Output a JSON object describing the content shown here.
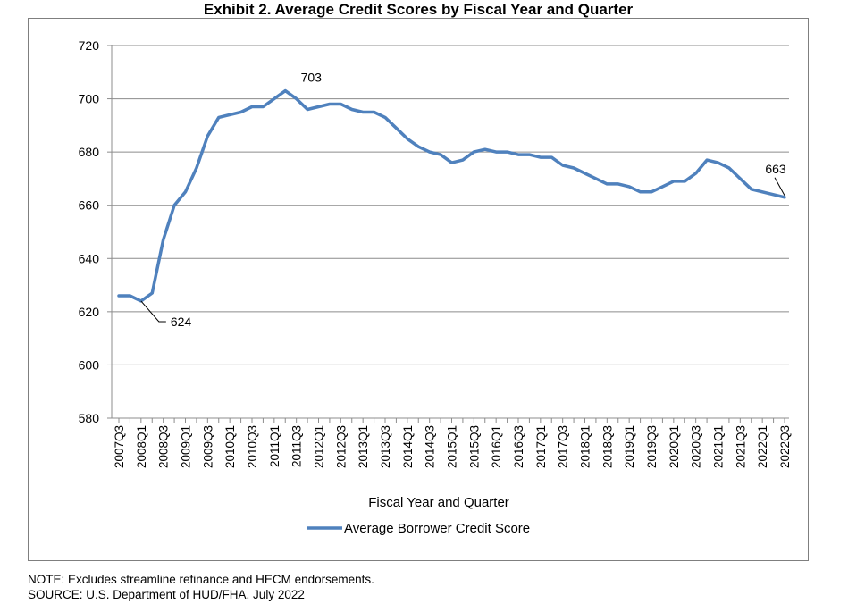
{
  "chart_data": {
    "type": "line",
    "title": "Exhibit 2. Average Credit Scores by Fiscal Year and Quarter",
    "xlabel": "Fiscal Year and Quarter",
    "ylabel": "",
    "ylim": [
      580,
      720
    ],
    "yticks": [
      580,
      600,
      620,
      640,
      660,
      680,
      700,
      720
    ],
    "grid": true,
    "legend_position": "bottom",
    "x": [
      "2007Q3",
      "2007Q4",
      "2008Q1",
      "2008Q2",
      "2008Q3",
      "2008Q4",
      "2009Q1",
      "2009Q2",
      "2009Q3",
      "2009Q4",
      "2010Q1",
      "2010Q2",
      "2010Q3",
      "2010Q4",
      "2011Q1",
      "2011Q2",
      "2011Q3",
      "2011Q4",
      "2012Q1",
      "2012Q2",
      "2012Q3",
      "2012Q4",
      "2013Q1",
      "2013Q2",
      "2013Q3",
      "2013Q4",
      "2014Q1",
      "2014Q2",
      "2014Q3",
      "2014Q4",
      "2015Q1",
      "2015Q2",
      "2015Q3",
      "2015Q4",
      "2016Q1",
      "2016Q2",
      "2016Q3",
      "2016Q4",
      "2017Q1",
      "2017Q2",
      "2017Q3",
      "2017Q4",
      "2018Q1",
      "2018Q2",
      "2018Q3",
      "2018Q4",
      "2019Q1",
      "2019Q2",
      "2019Q3",
      "2019Q4",
      "2020Q1",
      "2020Q2",
      "2020Q3",
      "2020Q4",
      "2021Q1",
      "2021Q2",
      "2021Q3",
      "2021Q4",
      "2022Q1",
      "2022Q2",
      "2022Q3"
    ],
    "x_tick_labels": [
      "2007Q3",
      "2008Q1",
      "2008Q3",
      "2009Q1",
      "2009Q3",
      "2010Q1",
      "2010Q3",
      "2011Q1",
      "2011Q3",
      "2012Q1",
      "2012Q3",
      "2013Q1",
      "2013Q3",
      "2014Q1",
      "2014Q3",
      "2015Q1",
      "2015Q3",
      "2016Q1",
      "2016Q3",
      "2017Q1",
      "2017Q3",
      "2018Q1",
      "2018Q3",
      "2019Q1",
      "2019Q3",
      "2020Q1",
      "2020Q3",
      "2021Q1",
      "2021Q3",
      "2022Q1",
      "2022Q3"
    ],
    "series": [
      {
        "name": "Average Borrower Credit Score",
        "color": "#4f81bd",
        "values": [
          626,
          626,
          624,
          627,
          647,
          660,
          665,
          674,
          686,
          693,
          694,
          695,
          697,
          697,
          700,
          703,
          700,
          696,
          697,
          698,
          698,
          696,
          695,
          695,
          693,
          689,
          685,
          682,
          680,
          679,
          676,
          677,
          680,
          681,
          680,
          680,
          679,
          679,
          678,
          678,
          675,
          674,
          672,
          670,
          668,
          668,
          667,
          665,
          665,
          667,
          669,
          669,
          672,
          677,
          676,
          674,
          670,
          666,
          665,
          664,
          663
        ]
      }
    ],
    "annotations": [
      {
        "text": "624",
        "x": "2008Q1",
        "y": 624
      },
      {
        "text": "703",
        "x": "2011Q2",
        "y": 703
      },
      {
        "text": "663",
        "x": "2022Q3",
        "y": 663
      }
    ]
  },
  "notes": [
    "NOTE: Excludes streamline refinance and HECM endorsements.",
    "SOURCE: U.S. Department of HUD/FHA, July 2022"
  ]
}
